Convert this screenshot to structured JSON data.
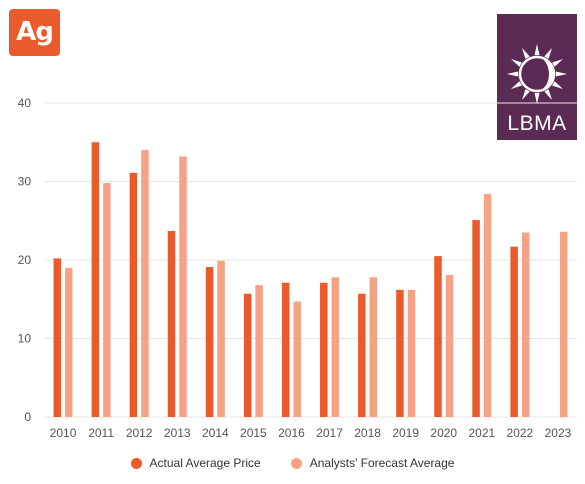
{
  "badge": {
    "text": "Ag"
  },
  "logo": {
    "text": "LBMA",
    "icon": "sun-moon-icon"
  },
  "colors": {
    "actual": "#ea5a2a",
    "forecast": "#f5a285",
    "badge": "#ea5a2a",
    "logo_bg": "#5b2a55",
    "grid": "#e6e6e6"
  },
  "chart_data": {
    "type": "bar",
    "categories": [
      "2010",
      "2011",
      "2012",
      "2013",
      "2014",
      "2015",
      "2016",
      "2017",
      "2018",
      "2019",
      "2020",
      "2021",
      "2022",
      "2023"
    ],
    "series": [
      {
        "name": "Actual Average Price",
        "values": [
          20.2,
          35.0,
          31.1,
          23.7,
          19.1,
          15.7,
          17.1,
          17.1,
          15.7,
          16.2,
          20.5,
          25.1,
          21.7,
          null
        ]
      },
      {
        "name": "Analysts’ Forecast Average",
        "values": [
          19.0,
          29.8,
          34.0,
          33.2,
          19.9,
          16.8,
          14.7,
          17.8,
          17.8,
          16.2,
          18.1,
          28.4,
          23.5,
          23.6
        ]
      }
    ],
    "ylim": [
      0,
      40
    ],
    "yticks": [
      0,
      10,
      20,
      30,
      40
    ],
    "xlabel": "",
    "ylabel": "",
    "grid": true,
    "legend": "bottom"
  }
}
